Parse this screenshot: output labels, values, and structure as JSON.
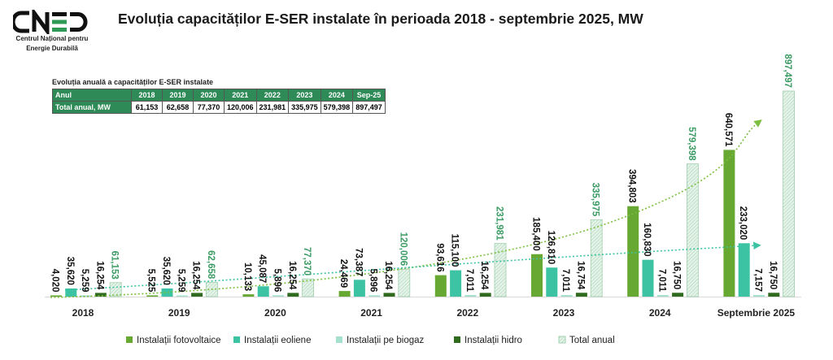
{
  "logo": {
    "text": "CNED",
    "subtitle_line1": "Centrul Național pentru",
    "subtitle_line2": "Energie Durabilă"
  },
  "title": "Evoluția capacităților E-SER instalate în perioada 2018 - septembrie 2025, MW",
  "table": {
    "title": "Evoluția anuală a capacităților E-SER instalate",
    "header_label": "Anul",
    "row_label": "Total anual, MW",
    "years": [
      "2018",
      "2019",
      "2020",
      "2021",
      "2022",
      "2023",
      "2024",
      "Sep-25"
    ],
    "values": [
      "61,153",
      "62,658",
      "77,370",
      "120,006",
      "231,981",
      "335,975",
      "579,398",
      "897,497"
    ]
  },
  "colors": {
    "fotovoltaice": "#66a832",
    "eoliene": "#3cc3a3",
    "biogaz": "#a6e0cf",
    "hidro": "#2f6a1e",
    "total": "#d7ecdc",
    "total_label": "#3b9b63"
  },
  "chart_data": {
    "type": "bar",
    "title": "Evoluția capacităților E-SER instalate în perioada 2018 - septembrie 2025, MW",
    "categories": [
      "2018",
      "2019",
      "2020",
      "2021",
      "2022",
      "2023",
      "2024",
      "Septembrie 2025"
    ],
    "ylim": [
      0,
      900000
    ],
    "grid": false,
    "legend": "bottom",
    "series": [
      {
        "name": "Instalații fotovoltaice",
        "values": [
          4020,
          5525,
          10133,
          24469,
          93616,
          185400,
          394803,
          640571
        ],
        "labels": [
          "4,020",
          "5,525",
          "10,133",
          "24,469",
          "93,616",
          "185,400",
          "394,803",
          "640,571"
        ],
        "trendline": true
      },
      {
        "name": "Instalații eoliene",
        "values": [
          35620,
          35620,
          45087,
          73387,
          115100,
          126810,
          160830,
          233020
        ],
        "labels": [
          "35,620",
          "35,620",
          "45,087",
          "73,387",
          "115,100",
          "126,810",
          "160,830",
          "233,020"
        ],
        "trendline": true
      },
      {
        "name": "Instalații pe biogaz",
        "values": [
          5259,
          5259,
          5896,
          5896,
          7011,
          7011,
          7011,
          7157
        ],
        "labels": [
          "5,259",
          "5,259",
          "5,896",
          "5,896",
          "7,011",
          "7,011",
          "7,011",
          "7,157"
        ]
      },
      {
        "name": "Instalații hidro",
        "values": [
          16254,
          16254,
          16254,
          16254,
          16254,
          16754,
          16750,
          16750
        ],
        "labels": [
          "16,254",
          "16,254",
          "16,254",
          "16,254",
          "16,254",
          "16,754",
          "16,750",
          "16,750"
        ]
      },
      {
        "name": "Total anual",
        "values": [
          61153,
          62658,
          77370,
          120006,
          231981,
          335975,
          579398,
          897497
        ],
        "labels": [
          "61,153",
          "62,658",
          "77,370",
          "120,006",
          "231,981",
          "335,975",
          "579,398",
          "897,497"
        ]
      }
    ]
  }
}
